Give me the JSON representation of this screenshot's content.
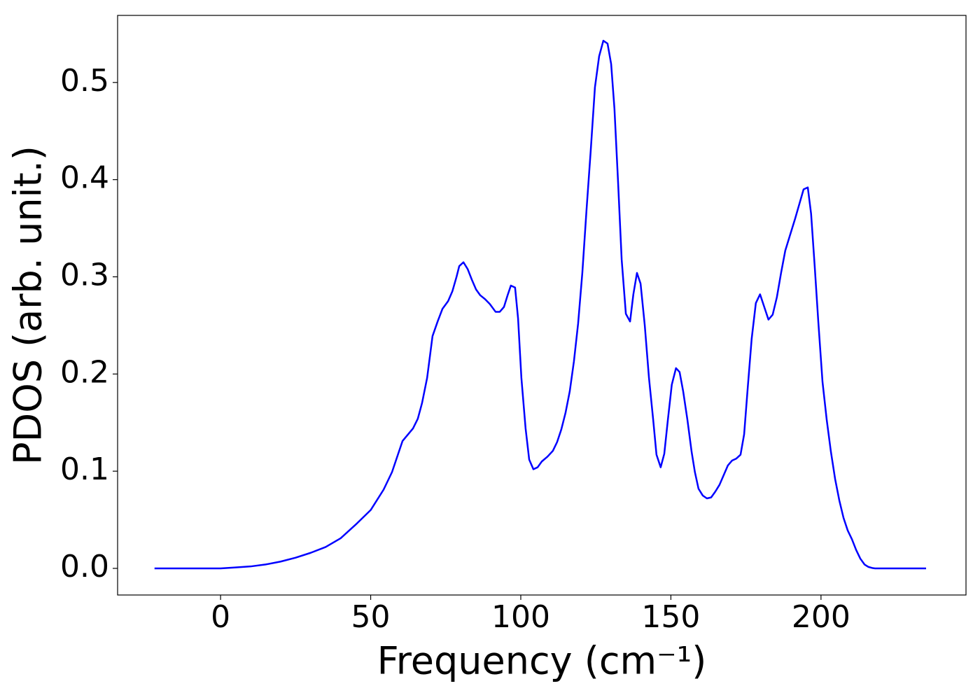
{
  "chart_data": {
    "type": "line",
    "x_label": "Frequency (cm⁻¹)",
    "y_label": "PDOS (arb. unit.)",
    "color": "#0000ff",
    "x": [
      -22,
      -10,
      0,
      5,
      10,
      15,
      20,
      25,
      30,
      35,
      40,
      45,
      50,
      54.3,
      57.1,
      60.6,
      64.1,
      65.7,
      67.1,
      68.8,
      70.6,
      72.3,
      73.9,
      75.8,
      77.2,
      78.6,
      79.5,
      80.9,
      82.3,
      83.7,
      85.1,
      86.5,
      88.1,
      89.7,
      91.6,
      93,
      94.4,
      95.6,
      96.7,
      98.1,
      99.1,
      100.2,
      101.6,
      102.8,
      104.2,
      105.6,
      107,
      108.9,
      110.7,
      112.1,
      113.5,
      114.9,
      116.3,
      117.7,
      119.1,
      120.5,
      121.9,
      123.3,
      124.7,
      126.1,
      127.5,
      128.9,
      130.1,
      131.2,
      132.4,
      133.6,
      135,
      136.4,
      137.5,
      138.7,
      139.9,
      141.3,
      142.7,
      144.1,
      145.2,
      146.6,
      147.8,
      149,
      150.3,
      151.7,
      152.9,
      154.1,
      155.5,
      156.9,
      158,
      159.2,
      160.6,
      162,
      163.4,
      164.8,
      166.2,
      167.6,
      169,
      170.4,
      171.8,
      173.2,
      174.4,
      175.5,
      176.9,
      178.3,
      179.7,
      181.1,
      182.5,
      183.9,
      185.3,
      186.7,
      188.1,
      189.5,
      191.4,
      192.8,
      194.2,
      195.6,
      196.7,
      197.9,
      199.1,
      200.5,
      201.9,
      203.3,
      204.7,
      206.1,
      207.5,
      208.9,
      210.3,
      211.7,
      213.1,
      214.5,
      215.8,
      217.2,
      218,
      235
    ],
    "values": [
      0,
      0,
      0,
      0.001,
      0.002,
      0.004,
      0.007,
      0.011,
      0.016,
      0.022,
      0.031,
      0.045,
      0.06,
      0.081,
      0.099,
      0.131,
      0.144,
      0.154,
      0.17,
      0.196,
      0.239,
      0.254,
      0.267,
      0.275,
      0.285,
      0.3,
      0.311,
      0.315,
      0.308,
      0.297,
      0.287,
      0.281,
      0.277,
      0.272,
      0.264,
      0.264,
      0.269,
      0.281,
      0.291,
      0.289,
      0.257,
      0.196,
      0.144,
      0.112,
      0.102,
      0.104,
      0.11,
      0.115,
      0.121,
      0.13,
      0.143,
      0.16,
      0.182,
      0.213,
      0.252,
      0.304,
      0.369,
      0.43,
      0.495,
      0.527,
      0.543,
      0.54,
      0.519,
      0.473,
      0.398,
      0.318,
      0.262,
      0.254,
      0.282,
      0.304,
      0.293,
      0.25,
      0.196,
      0.153,
      0.117,
      0.104,
      0.118,
      0.153,
      0.189,
      0.206,
      0.202,
      0.182,
      0.153,
      0.12,
      0.099,
      0.082,
      0.075,
      0.072,
      0.073,
      0.079,
      0.086,
      0.096,
      0.106,
      0.111,
      0.113,
      0.117,
      0.138,
      0.182,
      0.236,
      0.273,
      0.282,
      0.269,
      0.256,
      0.261,
      0.279,
      0.304,
      0.327,
      0.341,
      0.36,
      0.375,
      0.39,
      0.392,
      0.365,
      0.311,
      0.254,
      0.192,
      0.153,
      0.12,
      0.092,
      0.07,
      0.052,
      0.039,
      0.03,
      0.019,
      0.01,
      0.004,
      0.0015,
      0.0003,
      0,
      0
    ],
    "xlim": [
      -34.3,
      248.3
    ],
    "ylim": [
      -0.0274,
      0.569
    ],
    "xticks": [
      0,
      50,
      100,
      150,
      200
    ],
    "yticks": [
      {
        "value": 0,
        "label": "0.0"
      },
      0.1,
      0.2,
      0.3,
      0.4,
      0.5
    ]
  }
}
